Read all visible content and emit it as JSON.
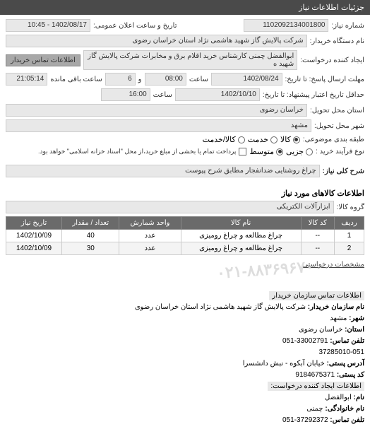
{
  "header": {
    "title": "جزئیات اطلاعات نیاز"
  },
  "form": {
    "need_no_label": "شماره نیاز:",
    "need_no": "1102092134001800",
    "announce_label": "تاریخ و ساعت اعلان عمومی:",
    "announce_value": "1402/08/17 - 10:45",
    "buyer_org_label": "نام دستگاه خریدار:",
    "buyer_org": "شرکت پالایش گاز شهید هاشمی نژاد    استان خراسان رضوی",
    "creator_label": "ایجاد کننده درخواست:",
    "creator": "ابوالفضل چمنی کارشناس خرید اقلام برق و مخابرات شرکت پالایش گاز شهید ه",
    "btn_buyer_contact": "اطلاعات تماس خریدار",
    "deadline_to_label": "مهلت ارسال پاسخ: تا تاریخ:",
    "deadline_date": "1402/08/24",
    "time_label": "ساعت",
    "deadline_time": "08:00",
    "days_label": "و",
    "days_value": "6",
    "remain_label": "ساعت باقی مانده",
    "remain_value": "21:05:14",
    "valid_to_label": "حداقل تاریخ اعتبار پیشنهاد: تا تاریخ:",
    "valid_date": "1402/10/10",
    "valid_time": "16:00",
    "province_label": "استان محل تحویل:",
    "province_value": "خراسان رضوی",
    "city_label": "شهر محل تحویل:",
    "city_value": "مشهد",
    "class_label": "طبقه بندی موضوعی:",
    "r_kala": "کالا",
    "r_khadamat": "خدمت",
    "r_kala_khadamat": "کالا/خدمت",
    "purchase_label": "نوع فرآیند خرید :",
    "r_jozi": "جزیی",
    "r_motavaset": "متوسط",
    "payment_note": "پرداخت تمام یا بخشی از مبلغ خرید،از محل \"اسناد خزانه اسلامی\" خواهد بود.",
    "desc_label": "شرح کلی نیاز:",
    "desc_value": "چراغ روشنایی ضدانفجار مطابق شرح پیوست"
  },
  "goods_section": {
    "title": "اطلاعات کالاهای مورد نیاز",
    "group_label": "گروه کالا:",
    "group_value": "ابزارآلات الکتریکی",
    "columns": [
      "ردیف",
      "کد کالا",
      "نام کالا",
      "واحد شمارش",
      "تعداد / مقدار",
      "تاریخ نیاز"
    ],
    "rows": [
      [
        "1",
        "--",
        "چراغ مطالعه و چراغ رومیزی",
        "عدد",
        "40",
        "1402/10/09"
      ],
      [
        "2",
        "--",
        "چراغ مطالعه و چراغ رومیزی",
        "عدد",
        "30",
        "1402/10/09"
      ]
    ]
  },
  "watermark_text": "۰۲۱-۸۸۳۶۹۶۷۰",
  "link_specs": "مشخصات درخواستی",
  "contact": {
    "title": "اطلاعات تماس سازمان خریدار",
    "org_label": "نام سازمان خریدار:",
    "org": "شرکت پالایش گاز شهید هاشمی نژاد استان خراسان رضوی",
    "city_label": "شهر:",
    "city": "مشهد",
    "province_label": "استان:",
    "province": "خراسان رضوی",
    "tel_label": "تلفن تماس:",
    "tel": "33002791-051",
    "fax": "37285010-051",
    "addr_label": "آدرس پستی:",
    "addr": "خیابان آبکوه - نبش دانشسرا",
    "post_label": "کد پستی:",
    "post": "9184675371",
    "creator_title": "اطلاعات ایجاد کننده درخواست:",
    "name_label": "نام:",
    "name": "ابوالفضل",
    "family_label": "نام خانوادگی:",
    "family": "چمنی",
    "ctel_label": "تلفن تماس:",
    "ctel": "37292372-051"
  },
  "colors": {
    "header_bg": "#4a4a4a",
    "field_bg": "#e8e8e8",
    "th_bg": "#6a6a6a"
  }
}
